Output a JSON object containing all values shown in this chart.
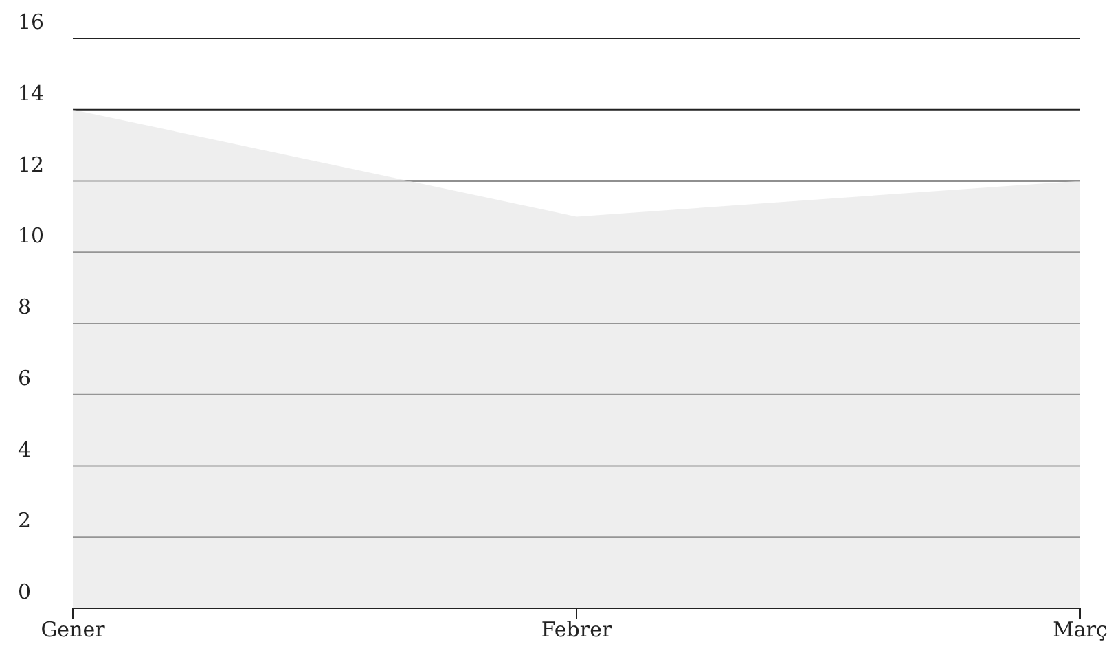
{
  "chart_data": {
    "type": "area",
    "categories": [
      "Gener",
      "Febrer",
      "Març"
    ],
    "series": [
      {
        "color": "#e3e3e3",
        "values": [
          14,
          11,
          12
        ]
      }
    ],
    "ylim": [
      0,
      16
    ],
    "yticks": [
      0,
      2,
      4,
      6,
      8,
      10,
      12,
      14,
      16
    ],
    "grid": "y",
    "legend": false
  }
}
